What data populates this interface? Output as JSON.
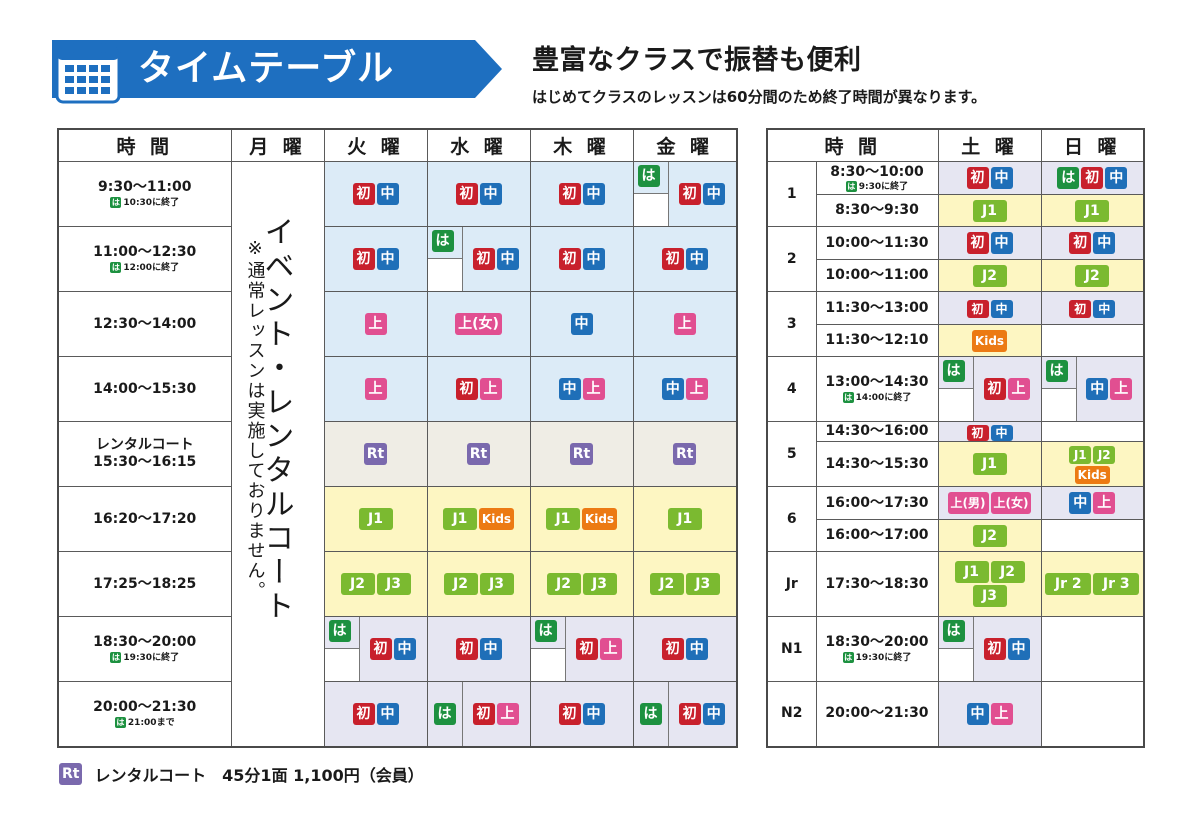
{
  "header": {
    "title": "タイムテーブル",
    "headline": "豊富なクラスで振替も便利",
    "subline": "はじめてクラスのレッスンは60分間のため終了時間が異なります。"
  },
  "colors": {
    "header_blue": "#1e6fc0",
    "beginner_red": "#c8202c",
    "intermediate_blue": "#1f6fb8",
    "hajimete_green": "#1d9140",
    "advanced_pink": "#e14f91",
    "rental_purple": "#7a69ad",
    "junior_lime": "#7bba30",
    "kids_orange": "#ec7a13"
  },
  "badges": {
    "ha": "は",
    "sho": "初",
    "chu": "中",
    "jo": "上",
    "jo_onna": "上(女)",
    "jo_otoko": "上(男)",
    "rt": "Rt",
    "j1": "J1",
    "j2": "J2",
    "j3": "J3",
    "kids": "Kids",
    "jr2": "Jr 2",
    "jr3": "Jr 3"
  },
  "weekday": {
    "headers": {
      "time": "時 間",
      "mon": "月 曜",
      "tue": "火 曜",
      "wed": "水 曜",
      "thu": "木 曜",
      "fri": "金 曜"
    },
    "monday_note_big": "イベント・レンタルコート",
    "monday_note_small": "※通常レッスンは実施しておりません。",
    "rows": [
      {
        "time": "9:30〜11:00",
        "note": "10:30に終了"
      },
      {
        "time": "11:00〜12:30",
        "note": "12:00に終了"
      },
      {
        "time": "12:30〜14:00"
      },
      {
        "time": "14:00〜15:30"
      },
      {
        "time_line1": "レンタルコート",
        "time": "15:30〜16:15"
      },
      {
        "time": "16:20〜17:20"
      },
      {
        "time": "17:25〜18:25"
      },
      {
        "time": "18:30〜20:00",
        "note": "19:30に終了"
      },
      {
        "time": "20:00〜21:30",
        "note": "21:00まで"
      }
    ]
  },
  "weekend": {
    "headers": {
      "time": "時 間",
      "sat": "土 曜",
      "sun": "日 曜"
    },
    "rows": [
      {
        "label": "1",
        "t1": "8:30〜10:00",
        "note": "9:30に終了",
        "t2": "8:30〜9:30"
      },
      {
        "label": "2",
        "t1": "10:00〜11:30",
        "t2": "10:00〜11:00"
      },
      {
        "label": "3",
        "t1": "11:30〜13:00",
        "t2": "11:30〜12:10"
      },
      {
        "label": "4",
        "t1": "13:00〜14:30",
        "note": "14:00に終了"
      },
      {
        "label": "5",
        "t1": "14:30〜16:00",
        "t2": "14:30〜15:30"
      },
      {
        "label": "6",
        "t1": "16:00〜17:30",
        "t2": "16:00〜17:00"
      },
      {
        "label": "Jr",
        "t1": "17:30〜18:30"
      },
      {
        "label": "N1",
        "t1": "18:30〜20:00",
        "note": "19:30に終了"
      },
      {
        "label": "N2",
        "t1": "20:00〜21:30"
      }
    ]
  },
  "footer": {
    "badge": "Rt",
    "text": "レンタルコート　45分1面 1,100円（会員）"
  }
}
